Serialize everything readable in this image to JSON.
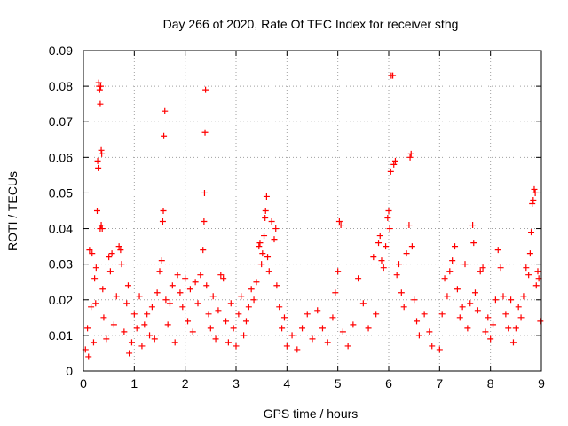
{
  "chart_data": {
    "type": "scatter",
    "title": "Day 266 of 2020, Rate Of TEC Index for receiver sthg",
    "xlabel": "GPS time / hours",
    "ylabel": "ROTI / TECUs",
    "xlim": [
      0,
      9
    ],
    "ylim": [
      0,
      0.09
    ],
    "x_ticks": [
      "0",
      "1",
      "2",
      "3",
      "4",
      "5",
      "6",
      "7",
      "8",
      "9"
    ],
    "y_ticks": [
      "0",
      "0.01",
      "0.02",
      "0.03",
      "0.04",
      "0.05",
      "0.06",
      "0.07",
      "0.08",
      "0.09"
    ],
    "grid": true,
    "marker": "+",
    "series_color": "#ff0000",
    "series": [
      {
        "name": "ROTI",
        "points": [
          [
            0.04,
            0.006
          ],
          [
            0.08,
            0.012
          ],
          [
            0.1,
            0.004
          ],
          [
            0.12,
            0.034
          ],
          [
            0.15,
            0.018
          ],
          [
            0.17,
            0.033
          ],
          [
            0.2,
            0.008
          ],
          [
            0.22,
            0.026
          ],
          [
            0.24,
            0.019
          ],
          [
            0.25,
            0.029
          ],
          [
            0.27,
            0.045
          ],
          [
            0.28,
            0.059
          ],
          [
            0.29,
            0.057
          ],
          [
            0.3,
            0.081
          ],
          [
            0.31,
            0.08
          ],
          [
            0.32,
            0.079
          ],
          [
            0.34,
            0.08
          ],
          [
            0.33,
            0.075
          ],
          [
            0.35,
            0.062
          ],
          [
            0.36,
            0.061
          ],
          [
            0.33,
            0.04
          ],
          [
            0.35,
            0.041
          ],
          [
            0.37,
            0.04
          ],
          [
            0.38,
            0.023
          ],
          [
            0.4,
            0.015
          ],
          [
            0.45,
            0.009
          ],
          [
            0.5,
            0.032
          ],
          [
            0.53,
            0.028
          ],
          [
            0.56,
            0.033
          ],
          [
            0.6,
            0.013
          ],
          [
            0.65,
            0.021
          ],
          [
            0.7,
            0.035
          ],
          [
            0.73,
            0.034
          ],
          [
            0.75,
            0.03
          ],
          [
            0.8,
            0.011
          ],
          [
            0.85,
            0.019
          ],
          [
            0.88,
            0.024
          ],
          [
            0.9,
            0.005
          ],
          [
            0.95,
            0.008
          ],
          [
            1.0,
            0.016
          ],
          [
            1.05,
            0.012
          ],
          [
            1.1,
            0.021
          ],
          [
            1.15,
            0.007
          ],
          [
            1.2,
            0.013
          ],
          [
            1.25,
            0.016
          ],
          [
            1.3,
            0.01
          ],
          [
            1.35,
            0.018
          ],
          [
            1.4,
            0.009
          ],
          [
            1.45,
            0.022
          ],
          [
            1.5,
            0.028
          ],
          [
            1.54,
            0.031
          ],
          [
            1.56,
            0.042
          ],
          [
            1.57,
            0.045
          ],
          [
            1.58,
            0.066
          ],
          [
            1.6,
            0.073
          ],
          [
            1.62,
            0.02
          ],
          [
            1.66,
            0.013
          ],
          [
            1.7,
            0.019
          ],
          [
            1.75,
            0.024
          ],
          [
            1.8,
            0.008
          ],
          [
            1.85,
            0.027
          ],
          [
            1.9,
            0.022
          ],
          [
            1.95,
            0.018
          ],
          [
            2.0,
            0.026
          ],
          [
            2.05,
            0.014
          ],
          [
            2.1,
            0.023
          ],
          [
            2.15,
            0.011
          ],
          [
            2.2,
            0.025
          ],
          [
            2.25,
            0.019
          ],
          [
            2.3,
            0.027
          ],
          [
            2.35,
            0.034
          ],
          [
            2.37,
            0.042
          ],
          [
            2.38,
            0.05
          ],
          [
            2.39,
            0.067
          ],
          [
            2.4,
            0.079
          ],
          [
            2.42,
            0.024
          ],
          [
            2.46,
            0.016
          ],
          [
            2.5,
            0.012
          ],
          [
            2.55,
            0.021
          ],
          [
            2.6,
            0.009
          ],
          [
            2.65,
            0.017
          ],
          [
            2.7,
            0.027
          ],
          [
            2.75,
            0.026
          ],
          [
            2.8,
            0.014
          ],
          [
            2.85,
            0.008
          ],
          [
            2.9,
            0.019
          ],
          [
            2.95,
            0.012
          ],
          [
            3.0,
            0.007
          ],
          [
            3.05,
            0.016
          ],
          [
            3.1,
            0.021
          ],
          [
            3.15,
            0.01
          ],
          [
            3.2,
            0.014
          ],
          [
            3.25,
            0.018
          ],
          [
            3.3,
            0.023
          ],
          [
            3.35,
            0.02
          ],
          [
            3.4,
            0.025
          ],
          [
            3.45,
            0.035
          ],
          [
            3.47,
            0.036
          ],
          [
            3.5,
            0.03
          ],
          [
            3.52,
            0.033
          ],
          [
            3.55,
            0.038
          ],
          [
            3.57,
            0.043
          ],
          [
            3.58,
            0.045
          ],
          [
            3.6,
            0.049
          ],
          [
            3.62,
            0.032
          ],
          [
            3.65,
            0.028
          ],
          [
            3.7,
            0.042
          ],
          [
            3.75,
            0.037
          ],
          [
            3.78,
            0.04
          ],
          [
            3.8,
            0.024
          ],
          [
            3.85,
            0.018
          ],
          [
            3.9,
            0.012
          ],
          [
            3.95,
            0.015
          ],
          [
            4.0,
            0.007
          ],
          [
            4.1,
            0.01
          ],
          [
            4.2,
            0.006
          ],
          [
            4.3,
            0.012
          ],
          [
            4.4,
            0.016
          ],
          [
            4.5,
            0.009
          ],
          [
            4.6,
            0.017
          ],
          [
            4.7,
            0.012
          ],
          [
            4.8,
            0.008
          ],
          [
            4.9,
            0.015
          ],
          [
            4.95,
            0.022
          ],
          [
            5.0,
            0.028
          ],
          [
            5.03,
            0.042
          ],
          [
            5.06,
            0.041
          ],
          [
            5.1,
            0.011
          ],
          [
            5.2,
            0.007
          ],
          [
            5.3,
            0.013
          ],
          [
            5.4,
            0.026
          ],
          [
            5.5,
            0.019
          ],
          [
            5.6,
            0.012
          ],
          [
            5.7,
            0.032
          ],
          [
            5.75,
            0.016
          ],
          [
            5.8,
            0.036
          ],
          [
            5.83,
            0.038
          ],
          [
            5.86,
            0.031
          ],
          [
            5.9,
            0.029
          ],
          [
            5.94,
            0.035
          ],
          [
            5.98,
            0.043
          ],
          [
            6.0,
            0.045
          ],
          [
            6.02,
            0.04
          ],
          [
            6.04,
            0.056
          ],
          [
            6.05,
            0.083
          ],
          [
            6.08,
            0.083
          ],
          [
            6.1,
            0.058
          ],
          [
            6.13,
            0.059
          ],
          [
            6.16,
            0.027
          ],
          [
            6.2,
            0.03
          ],
          [
            6.25,
            0.022
          ],
          [
            6.3,
            0.018
          ],
          [
            6.35,
            0.033
          ],
          [
            6.4,
            0.041
          ],
          [
            6.42,
            0.06
          ],
          [
            6.44,
            0.061
          ],
          [
            6.46,
            0.035
          ],
          [
            6.5,
            0.02
          ],
          [
            6.55,
            0.014
          ],
          [
            6.6,
            0.01
          ],
          [
            6.7,
            0.016
          ],
          [
            6.8,
            0.011
          ],
          [
            6.85,
            0.007
          ],
          [
            7.0,
            0.006
          ],
          [
            7.05,
            0.016
          ],
          [
            7.1,
            0.026
          ],
          [
            7.15,
            0.021
          ],
          [
            7.2,
            0.028
          ],
          [
            7.25,
            0.031
          ],
          [
            7.3,
            0.035
          ],
          [
            7.35,
            0.023
          ],
          [
            7.4,
            0.015
          ],
          [
            7.45,
            0.018
          ],
          [
            7.5,
            0.03
          ],
          [
            7.55,
            0.012
          ],
          [
            7.6,
            0.019
          ],
          [
            7.65,
            0.041
          ],
          [
            7.67,
            0.036
          ],
          [
            7.7,
            0.022
          ],
          [
            7.75,
            0.017
          ],
          [
            7.8,
            0.028
          ],
          [
            7.85,
            0.029
          ],
          [
            7.9,
            0.011
          ],
          [
            7.95,
            0.015
          ],
          [
            8.0,
            0.009
          ],
          [
            8.05,
            0.013
          ],
          [
            8.1,
            0.02
          ],
          [
            8.15,
            0.034
          ],
          [
            8.2,
            0.029
          ],
          [
            8.25,
            0.021
          ],
          [
            8.3,
            0.016
          ],
          [
            8.35,
            0.012
          ],
          [
            8.4,
            0.02
          ],
          [
            8.45,
            0.008
          ],
          [
            8.5,
            0.012
          ],
          [
            8.55,
            0.018
          ],
          [
            8.6,
            0.015
          ],
          [
            8.65,
            0.021
          ],
          [
            8.7,
            0.029
          ],
          [
            8.75,
            0.027
          ],
          [
            8.78,
            0.033
          ],
          [
            8.8,
            0.039
          ],
          [
            8.82,
            0.047
          ],
          [
            8.84,
            0.048
          ],
          [
            8.86,
            0.051
          ],
          [
            8.88,
            0.05
          ],
          [
            8.9,
            0.024
          ],
          [
            8.93,
            0.028
          ],
          [
            8.95,
            0.026
          ],
          [
            8.98,
            0.014
          ]
        ]
      }
    ]
  }
}
